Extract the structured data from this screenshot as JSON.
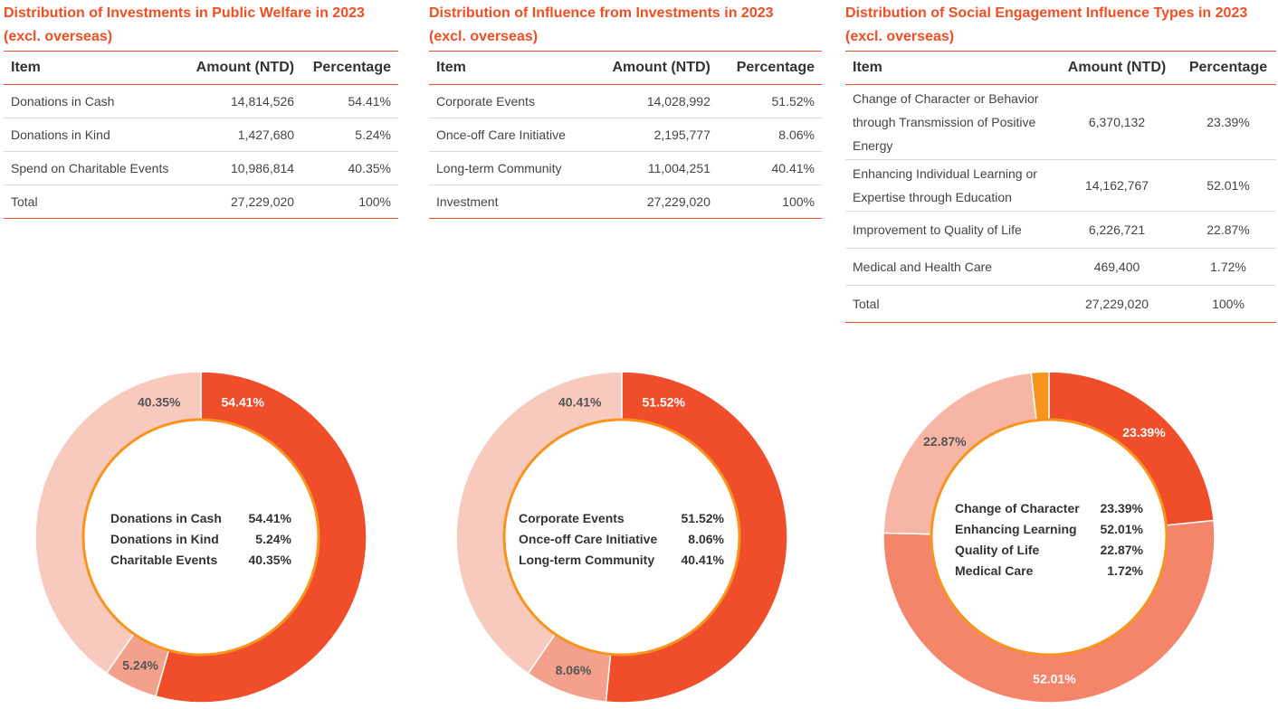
{
  "tables": [
    {
      "title_line1": "Distribution of Investments in Public Welfare in 2023",
      "title_line2": "(excl. overseas)",
      "headers": [
        "Item",
        "Amount (NTD)",
        "Percentage"
      ],
      "rows": [
        [
          "Donations in Cash",
          "14,814,526",
          "54.41%"
        ],
        [
          "Donations in Kind",
          "1,427,680",
          "5.24%"
        ],
        [
          "Spend on Charitable Events",
          "10,986,814",
          "40.35%"
        ],
        [
          "Total",
          "27,229,020",
          "100%"
        ]
      ]
    },
    {
      "title_line1": "Distribution of Influence from Investments in 2023",
      "title_line2": "(excl. overseas)",
      "headers": [
        "Item",
        "Amount (NTD)",
        "Percentage"
      ],
      "rows": [
        [
          "Corporate Events",
          "14,028,992",
          "51.52%"
        ],
        [
          "Once-off Care Initiative",
          "2,195,777",
          "8.06%"
        ],
        [
          "Long-term Community",
          "11,004,251",
          "40.41%"
        ],
        [
          "Investment",
          "27,229,020",
          "100%"
        ]
      ]
    },
    {
      "title_line1": "Distribution of Social Engagement Influence Types in 2023",
      "title_line2": "(excl. overseas)",
      "headers": [
        "Item",
        "Amount (NTD)",
        "Percentage"
      ],
      "rows": [
        [
          "Change of Character or Behavior through Transmission of Positive Energy",
          "6,370,132",
          "23.39%"
        ],
        [
          "Enhancing Individual Learning or Expertise through Education",
          "14,162,767",
          "52.01%"
        ],
        [
          "Improvement to Quality of Life",
          "6,226,721",
          "22.87%"
        ],
        [
          "Medical and Health Care",
          "469,400",
          "1.72%"
        ],
        [
          "Total",
          "27,229,020",
          "100%"
        ]
      ]
    }
  ],
  "colors": {
    "accent": "#f04e23",
    "ring_border": "#f7941d",
    "dark_red": "#f04e2a",
    "salmon": "#f4846a",
    "light_salmon": "#f3a08c",
    "pale_pink": "#f8c9bd",
    "orange": "#f7941d"
  },
  "chart_data": [
    {
      "type": "pie",
      "title": "",
      "categories": [
        "Donations in Cash",
        "Donations in Kind",
        "Charitable Events"
      ],
      "values": [
        54.41,
        5.24,
        40.35
      ],
      "slice_labels": [
        "54.41%",
        "5.24%",
        "40.35%"
      ],
      "slice_colors": [
        "#f04e2a",
        "#f3a08c",
        "#f8c9bd"
      ],
      "legend": [
        {
          "label": "Donations in Cash",
          "value": "54.41%"
        },
        {
          "label": "Donations in Kind",
          "value": "5.24%"
        },
        {
          "label": "Charitable Events",
          "value": "40.35%"
        }
      ]
    },
    {
      "type": "pie",
      "title": "",
      "categories": [
        "Corporate Events",
        "Once-off Care Initiative",
        "Long-term Community"
      ],
      "values": [
        51.52,
        8.06,
        40.41
      ],
      "slice_labels": [
        "51.52%",
        "8.06%",
        "40.41%"
      ],
      "slice_colors": [
        "#f04e2a",
        "#f3a08c",
        "#f8c9bd"
      ],
      "legend": [
        {
          "label": "Corporate Events",
          "value": "51.52%"
        },
        {
          "label": "Once-off Care Initiative",
          "value": "8.06%"
        },
        {
          "label": "Long-term Community",
          "value": "40.41%"
        }
      ]
    },
    {
      "type": "pie",
      "title": "",
      "categories": [
        "Change of Character",
        "Enhancing Learning",
        "Quality of Life",
        "Medical Care"
      ],
      "values": [
        23.39,
        52.01,
        22.87,
        1.72
      ],
      "slice_labels": [
        "23.39%",
        "52.01%",
        "22.87%",
        ""
      ],
      "slice_colors": [
        "#f04e2a",
        "#f4846a",
        "#f7b6a5",
        "#f7941d"
      ],
      "legend": [
        {
          "label": "Change of Character",
          "value": "23.39%"
        },
        {
          "label": "Enhancing Learning",
          "value": "52.01%"
        },
        {
          "label": "Quality of Life",
          "value": "22.87%"
        },
        {
          "label": "Medical Care",
          "value": "1.72%"
        }
      ]
    }
  ]
}
